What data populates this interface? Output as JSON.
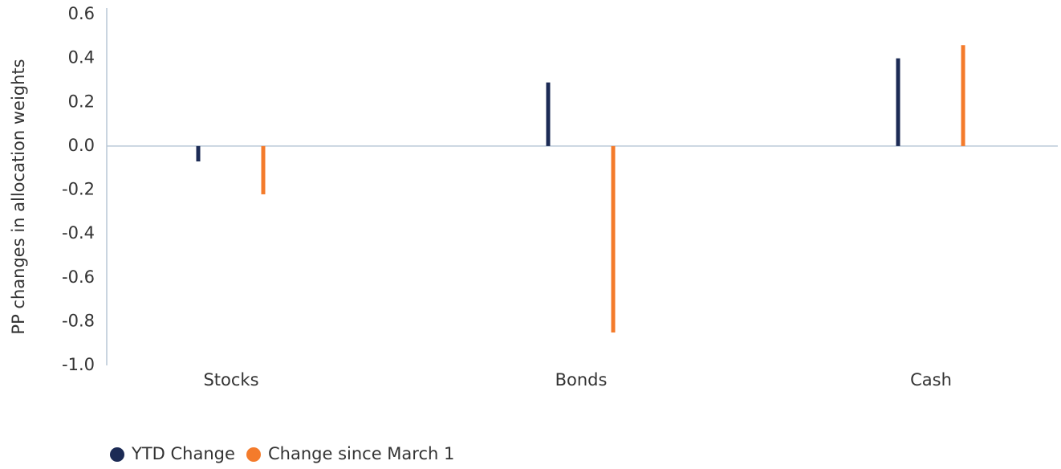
{
  "chart_data": {
    "type": "bar",
    "y_label": "PP changes in allocation weights",
    "categories": [
      "Stocks",
      "Bonds",
      "Cash"
    ],
    "series": [
      {
        "name": "YTD Change",
        "color": "#1c2b55",
        "values": [
          -0.07,
          0.29,
          0.4
        ]
      },
      {
        "name": "Change since March 1",
        "color": "#f47b2b",
        "values": [
          -0.22,
          -0.85,
          0.46
        ]
      }
    ],
    "ylim": [
      -1.0,
      0.6
    ],
    "yticks": [
      0.6,
      0.4,
      0.2,
      {
        "value": 0,
        "label": "0.0"
      },
      -0.2,
      -0.4,
      -0.6,
      -0.8,
      {
        "value": -1.0,
        "label": "-1.0"
      }
    ],
    "legend": "bottom-left"
  }
}
